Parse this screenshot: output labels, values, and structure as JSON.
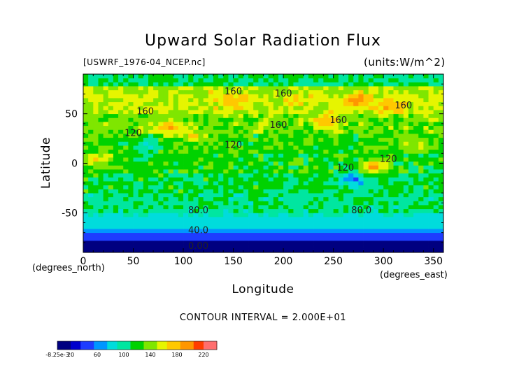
{
  "chart_data": {
    "type": "heatmap",
    "title": "Upward Solar Radiation Flux",
    "subtitle_left": "[USWRF_1976-04_NCEP.nc]",
    "subtitle_right": "(units:W/m^2)",
    "xlabel": "Longitude",
    "ylabel": "Latitude",
    "x_unit_label": "(degrees_east)",
    "y_unit_label": "(degrees_north)",
    "xlim": [
      0,
      360
    ],
    "ylim": [
      -90,
      90
    ],
    "x_ticks": [
      0,
      50,
      100,
      150,
      200,
      250,
      300,
      350
    ],
    "y_ticks": [
      -50,
      0,
      50
    ],
    "contour_interval_text": "CONTOUR INTERVAL = 2.000E+01",
    "contour_labels": [
      "160",
      "160",
      "160",
      "160",
      "160",
      "160",
      "120",
      "120",
      "120",
      "120",
      "80.0",
      "80.0",
      "40.0",
      "0.00"
    ],
    "colorbar": {
      "tick_labels": [
        "-8.25e-3",
        "20",
        "60",
        "100",
        "140",
        "180",
        "220"
      ],
      "tick_values": [
        0,
        20,
        60,
        100,
        140,
        180,
        220
      ],
      "range": [
        0,
        240
      ],
      "colors": [
        "#000080",
        "#0000cd",
        "#1e3cff",
        "#0096ff",
        "#00dcdc",
        "#00e6a0",
        "#00d200",
        "#7fe600",
        "#e6f500",
        "#ffc800",
        "#ff9600",
        "#ff3c00",
        "#ff6e6e"
      ]
    },
    "bands": [
      {
        "lat": [
          -90,
          -78
        ],
        "value": 10
      },
      {
        "lat": [
          -78,
          -70
        ],
        "value": 40
      },
      {
        "lat": [
          -70,
          -64
        ],
        "value": 60
      },
      {
        "lat": [
          -64,
          -58
        ],
        "value": 75
      },
      {
        "lat": [
          -58,
          -48
        ],
        "value": 90
      },
      {
        "lat": [
          -48,
          -30
        ],
        "value": 105
      },
      {
        "lat": [
          -30,
          -10
        ],
        "value": 115
      },
      {
        "lat": [
          -10,
          10
        ],
        "value": 120
      },
      {
        "lat": [
          10,
          30
        ],
        "value": 125
      },
      {
        "lat": [
          30,
          50
        ],
        "value": 135
      },
      {
        "lat": [
          50,
          70
        ],
        "value": 150
      },
      {
        "lat": [
          70,
          80
        ],
        "value": 145
      },
      {
        "lat": [
          80,
          90
        ],
        "value": 110
      }
    ],
    "features": [
      {
        "lon": 150,
        "lat": 64,
        "value": 175
      },
      {
        "lon": 210,
        "lat": 65,
        "value": 170
      },
      {
        "lon": 275,
        "lat": 63,
        "value": 200
      },
      {
        "lon": 310,
        "lat": 58,
        "value": 185
      },
      {
        "lon": 85,
        "lat": 36,
        "value": 185
      },
      {
        "lon": 245,
        "lat": 43,
        "value": 185
      },
      {
        "lon": 290,
        "lat": -3,
        "value": 175
      },
      {
        "lon": 15,
        "lat": 5,
        "value": 165
      },
      {
        "lon": 65,
        "lat": 17,
        "value": 90
      },
      {
        "lon": 110,
        "lat": 28,
        "value": 155
      },
      {
        "lon": 185,
        "lat": 42,
        "value": 150
      },
      {
        "lon": 330,
        "lat": 18,
        "value": 155
      },
      {
        "lon": 270,
        "lat": -17,
        "value": 60
      },
      {
        "lon": 130,
        "lat": 72,
        "value": 160
      },
      {
        "lon": 340,
        "lat": 70,
        "value": 150
      }
    ]
  }
}
